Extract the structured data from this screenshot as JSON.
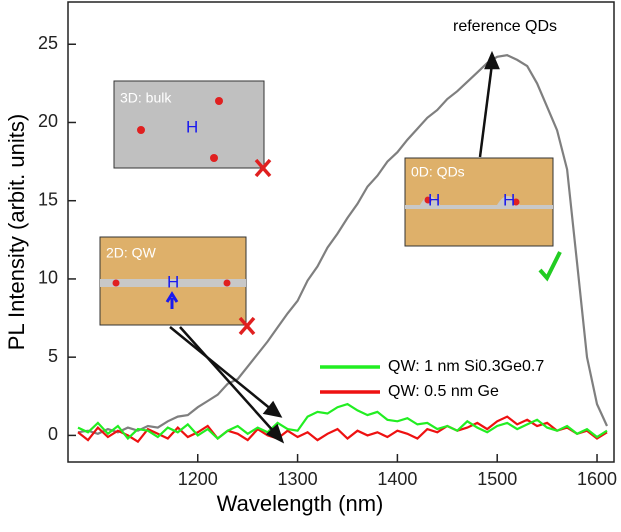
{
  "chart_data": {
    "type": "line",
    "xlabel": "Wavelength (nm)",
    "ylabel": "PL Intensity (arbit. units)",
    "x": [
      1080,
      1090,
      1100,
      1110,
      1120,
      1130,
      1140,
      1150,
      1160,
      1170,
      1180,
      1190,
      1200,
      1210,
      1220,
      1230,
      1240,
      1250,
      1260,
      1270,
      1280,
      1290,
      1300,
      1310,
      1320,
      1330,
      1340,
      1350,
      1360,
      1370,
      1380,
      1390,
      1400,
      1410,
      1420,
      1430,
      1440,
      1450,
      1460,
      1470,
      1480,
      1490,
      1500,
      1510,
      1520,
      1530,
      1540,
      1550,
      1560,
      1570,
      1580,
      1590,
      1600,
      1610
    ],
    "series": [
      {
        "name": "reference QDs",
        "color": "#7f7f7f",
        "values": [
          0.2,
          0.3,
          0.1,
          0.4,
          0.2,
          0.5,
          0.3,
          0.6,
          0.5,
          0.9,
          1.2,
          1.3,
          1.8,
          2.2,
          2.6,
          3.3,
          3.6,
          4.4,
          5.2,
          6.0,
          6.9,
          7.8,
          8.6,
          9.9,
          10.8,
          12.0,
          12.9,
          13.9,
          14.8,
          15.9,
          16.6,
          17.5,
          18.1,
          18.9,
          19.6,
          20.3,
          20.8,
          21.5,
          22.0,
          22.6,
          23.2,
          23.8,
          24.2,
          24.3,
          24.0,
          23.6,
          22.5,
          21.0,
          19.5,
          17.0,
          11.0,
          5.0,
          2.0,
          0.6
        ]
      },
      {
        "name": "QW: 1 nm Si0.3Ge0.7",
        "color": "#22ee22",
        "values": [
          0.5,
          0.2,
          0.8,
          0.1,
          0.6,
          -0.2,
          0.4,
          0.3,
          -0.1,
          0.5,
          0.2,
          0.7,
          0,
          0.4,
          -0.2,
          0.3,
          0.6,
          0.1,
          0.5,
          0.2,
          0.8,
          0.4,
          0.3,
          1.2,
          1.5,
          1.4,
          1.8,
          2.0,
          1.6,
          1.3,
          1.5,
          1.0,
          0.9,
          1.1,
          0.7,
          0.8,
          0.4,
          0.6,
          0.3,
          0.9,
          0.5,
          0.2,
          0.6,
          0.8,
          0.4,
          0.7,
          1.0,
          0.5,
          0.3,
          0.6,
          0.1,
          0.4,
          -0.1,
          0.3
        ]
      },
      {
        "name": "QW: 0.5 nm Ge",
        "color": "#ee1111",
        "values": [
          0.2,
          -0.3,
          0.5,
          -0.1,
          0.3,
          0,
          -0.4,
          0.4,
          0.1,
          -0.2,
          0.5,
          -0.1,
          0.2,
          0.6,
          -0.2,
          0.3,
          0.1,
          -0.3,
          0.4,
          0,
          -0.2,
          0.3,
          -0.1,
          0.2,
          -0.3,
          0.1,
          0.4,
          -0.2,
          0.3,
          0,
          0.2,
          -0.1,
          0.3,
          0.1,
          -0.2,
          0.4,
          0.2,
          0.6,
          0.3,
          0.5,
          0.8,
          0.4,
          0.9,
          1.2,
          0.7,
          1.0,
          0.6,
          0.8,
          0.3,
          0.5,
          0.1,
          0.3,
          -0.2,
          0.2
        ]
      }
    ],
    "xlim": [
      1070,
      1617
    ],
    "ylim": [
      -1.7,
      27.7
    ],
    "xticks": [
      1200,
      1300,
      1400,
      1500,
      1600
    ],
    "yticks": [
      0,
      5,
      10,
      15,
      20,
      25
    ],
    "insets": [
      {
        "label": "3D: bulk",
        "marks": [
          "H"
        ]
      },
      {
        "label": "2D: QW",
        "marks": [
          "H"
        ]
      },
      {
        "label": "0D: QDs",
        "marks": [
          "H",
          "H"
        ]
      }
    ]
  }
}
